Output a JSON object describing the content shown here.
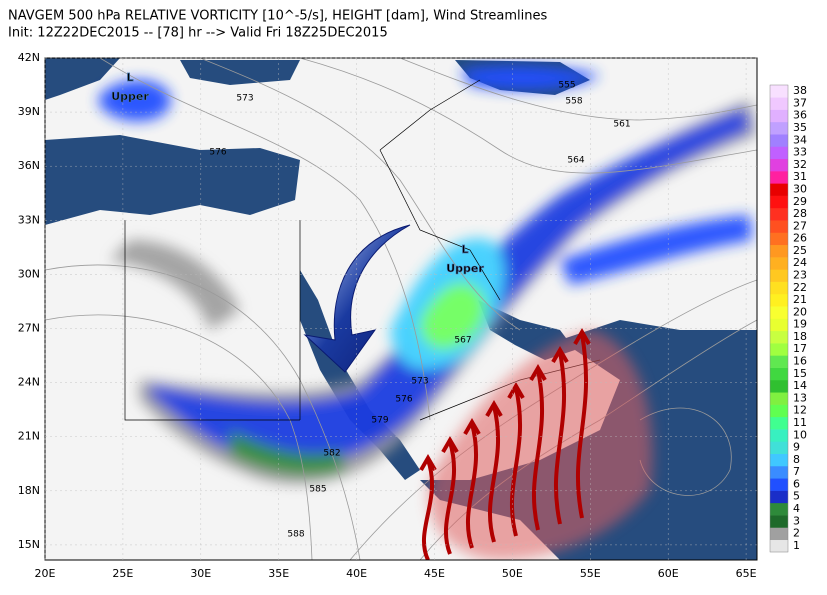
{
  "header": {
    "title": "NAVGEM 500 hPa RELATIVE VORTICITY [10^-5/s], HEIGHT [dam], Wind Streamlines",
    "subtitle": "Init: 12Z22DEC2015 -- [78] hr --> Valid Fri 18Z25DEC2015"
  },
  "map": {
    "lat_labels": [
      "42N",
      "39N",
      "36N",
      "33N",
      "30N",
      "27N",
      "24N",
      "21N",
      "18N",
      "15N"
    ],
    "lon_labels": [
      "20E",
      "25E",
      "30E",
      "35E",
      "40E",
      "45E",
      "50E",
      "55E",
      "60E",
      "65E"
    ],
    "contour_labels": [
      "573",
      "576",
      "555",
      "558",
      "561",
      "564",
      "567",
      "573",
      "576",
      "579",
      "582",
      "585",
      "588"
    ],
    "lows": [
      {
        "symbol": "L",
        "label": "Upper"
      },
      {
        "symbol": "L",
        "label": "Upper"
      }
    ]
  },
  "colorbar": {
    "ticks": [
      1,
      2,
      3,
      4,
      5,
      6,
      7,
      8,
      9,
      10,
      11,
      12,
      13,
      14,
      15,
      16,
      17,
      18,
      19,
      20,
      21,
      22,
      23,
      24,
      25,
      26,
      27,
      28,
      29,
      30,
      31,
      32,
      33,
      34,
      35,
      36,
      37,
      38
    ],
    "colors": [
      "#e6e6e6",
      "#a0a0a0",
      "#1e6a2a",
      "#2e8a3a",
      "#1a2ec8",
      "#2050ff",
      "#3a8cff",
      "#40c8ff",
      "#40e0d8",
      "#38f0c0",
      "#40ff90",
      "#60ff50",
      "#80f040",
      "#30c030",
      "#40d840",
      "#60e850",
      "#a0ff40",
      "#c8ff40",
      "#e8ff30",
      "#f8ff30",
      "#fff020",
      "#ffe020",
      "#ffc820",
      "#ffb020",
      "#ff9820",
      "#ff7020",
      "#ff5020",
      "#ff3020",
      "#ff1010",
      "#e80000",
      "#ff20a0",
      "#e040e0",
      "#c060ff",
      "#a080ff",
      "#c0a0ff",
      "#e0b0ff",
      "#f0c8ff",
      "#f8e0ff"
    ]
  }
}
